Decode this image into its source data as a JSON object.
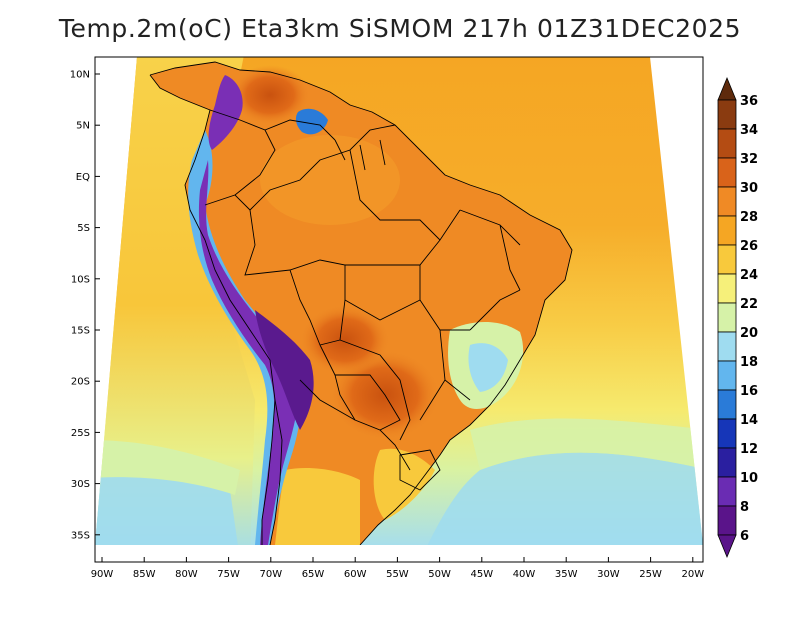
{
  "header": {
    "title": "Temp.2m(oC) Eta3km SiSMOM 217h 01Z31DEC2025"
  },
  "map": {
    "region": "South America",
    "variable": "2 m air temperature",
    "unit": "oC",
    "lat_ticks": [
      "10N",
      "5N",
      "EQ",
      "5S",
      "10S",
      "15S",
      "20S",
      "25S",
      "30S",
      "35S"
    ],
    "lon_ticks": [
      "90W",
      "85W",
      "80W",
      "75W",
      "70W",
      "65W",
      "60W",
      "55W",
      "50W",
      "45W",
      "40W",
      "35W",
      "30W",
      "25W",
      "20W"
    ],
    "colors": {
      "ocean_warm": "#f5a623",
      "ocean_mild": "#f8d24a",
      "ocean_cool": "#f2ee72",
      "south_pale": "#d6f2a8",
      "south_cool": "#9fdcf0",
      "land_hot": "#e8761c",
      "land_very_hot": "#cf5a12",
      "andes": "#7a2fb5",
      "andes_deep": "#5a1a8e",
      "border": "#000000"
    }
  },
  "colorbar": {
    "labels": [
      "36",
      "34",
      "32",
      "30",
      "28",
      "26",
      "24",
      "22",
      "20",
      "18",
      "16",
      "14",
      "12",
      "10",
      "8",
      "6"
    ],
    "colors": [
      "#5e2a0c",
      "#8a3b10",
      "#b44c13",
      "#d9631a",
      "#f08a25",
      "#f5a623",
      "#f8c93c",
      "#f6f07a",
      "#d6f2a8",
      "#9fdcf0",
      "#62b6ee",
      "#2a7bd8",
      "#1636b8",
      "#2a1fa0",
      "#6a2cb3",
      "#5a148a"
    ]
  }
}
